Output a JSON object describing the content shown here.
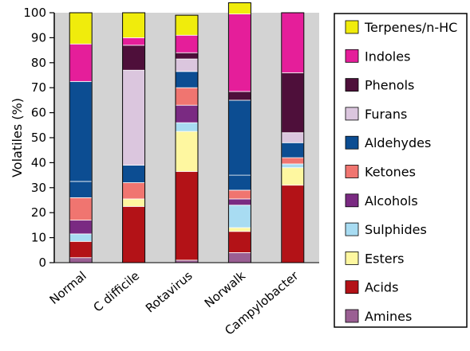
{
  "chart_data": {
    "type": "bar",
    "stacked": true,
    "ylabel": "Volatiles (%)",
    "ylim": [
      0,
      100
    ],
    "yticks": [
      0,
      10,
      20,
      30,
      40,
      50,
      60,
      70,
      80,
      90,
      100
    ],
    "categories": [
      "Normal",
      "C difficile",
      "Rotavirus",
      "Norwalk",
      "Campylobacter"
    ],
    "legend_position": "right",
    "series": [
      {
        "name": "Amines",
        "color": "#9a5f93",
        "values": [
          2,
          0,
          1,
          4,
          0
        ]
      },
      {
        "name": "Acids",
        "color": "#b31217",
        "values": [
          6.5,
          22.5,
          35.5,
          8.5,
          31
        ]
      },
      {
        "name": "Esters",
        "color": "#fef7a0",
        "values": [
          0,
          3,
          16,
          1.5,
          7
        ]
      },
      {
        "name": "Sulphides",
        "color": "#a8dcf2",
        "values": [
          3,
          0,
          3.5,
          9,
          1.5
        ]
      },
      {
        "name": "Alcohols",
        "color": "#7a2a82",
        "values": [
          5.5,
          0,
          7,
          2.5,
          0
        ]
      },
      {
        "name": "Ketones",
        "color": "#f07570",
        "values": [
          9,
          6.5,
          7,
          3.5,
          2.5
        ]
      },
      {
        "name": "Aldehydes",
        "color": "#0c4d92",
        "values": [
          6.5,
          7,
          6.5,
          6,
          6
        ]
      },
      {
        "name": "Aldehydes",
        "color": "#0c4d92",
        "values": [
          40,
          0,
          0,
          30,
          0
        ]
      },
      {
        "name": "Furans",
        "color": "#dbc6de",
        "values": [
          0,
          38,
          5,
          0,
          4
        ]
      },
      {
        "name": "Phenols",
        "color": "#4e0f3a",
        "values": [
          0,
          10,
          2.5,
          3.5,
          24
        ]
      },
      {
        "name": "Indoles",
        "color": "#e51e9a",
        "values": [
          15,
          3,
          7,
          31,
          24
        ]
      },
      {
        "name": "Terpenes/n-HC",
        "color": "#f0ec0c",
        "values": [
          12.5,
          10,
          8,
          4.5,
          0
        ]
      }
    ]
  },
  "legend": {
    "items": [
      {
        "label": "Terpenes/n-HC",
        "color": "#f0ec0c"
      },
      {
        "label": "Indoles",
        "color": "#e51e9a"
      },
      {
        "label": "Phenols",
        "color": "#4e0f3a"
      },
      {
        "label": "Furans",
        "color": "#dbc6de"
      },
      {
        "label": "Aldehydes",
        "color": "#0c4d92"
      },
      {
        "label": "Ketones",
        "color": "#f07570"
      },
      {
        "label": "Alcohols",
        "color": "#7a2a82"
      },
      {
        "label": "Sulphides",
        "color": "#a8dcf2"
      },
      {
        "label": "Esters",
        "color": "#fef7a0"
      },
      {
        "label": "Acids",
        "color": "#b31217"
      },
      {
        "label": "Amines",
        "color": "#9a5f93"
      }
    ]
  },
  "colors": {
    "plot_background": "#d3d3d3",
    "bar_outline": "#000000",
    "segment_divider": "#ffffff"
  }
}
